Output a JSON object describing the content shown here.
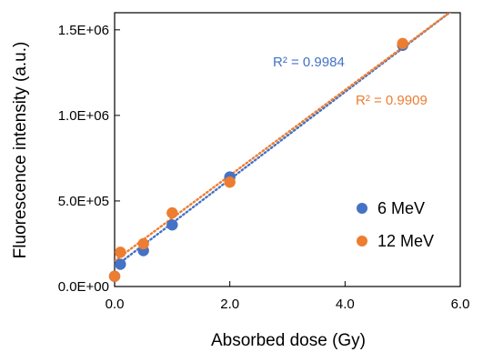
{
  "chart_data": {
    "type": "scatter",
    "xlabel": "Absorbed dose (Gy)",
    "ylabel": "Fluorescence  intensity (a.u.)",
    "xlim": [
      0,
      6
    ],
    "ylim": [
      0,
      1600000
    ],
    "x_ticks": [
      0,
      2,
      4,
      6
    ],
    "x_tick_labels": [
      "0.0",
      "2.0",
      "4.0",
      "6.0"
    ],
    "y_ticks": [
      0,
      500000,
      1000000,
      1500000
    ],
    "y_tick_labels": [
      "0.0E+00",
      "5.0E+05",
      "1.0E+06",
      "1.5E+06"
    ],
    "grid": false,
    "legend_position": "bottom-right",
    "series": [
      {
        "name": "6 MeV",
        "color": "#4472C4",
        "x": [
          0,
          0.1,
          0.5,
          1,
          2,
          5
        ],
        "y": [
          60000,
          130000,
          210000,
          360000,
          640000,
          1410000
        ],
        "trendline": {
          "type": "linear",
          "r2_label": "R² = 0.9984",
          "x_range": [
            0,
            5.85
          ],
          "y_range": [
            115000,
            1610000
          ]
        }
      },
      {
        "name": "12 MeV",
        "color": "#ED7D31",
        "x": [
          0,
          0.1,
          0.5,
          1,
          2,
          5
        ],
        "y": [
          60000,
          200000,
          250000,
          430000,
          610000,
          1420000
        ],
        "trendline": {
          "type": "linear",
          "r2_label": "R² = 0.9909",
          "x_range": [
            0,
            5.85
          ],
          "y_range": [
            150000,
            1610000
          ]
        }
      }
    ]
  }
}
